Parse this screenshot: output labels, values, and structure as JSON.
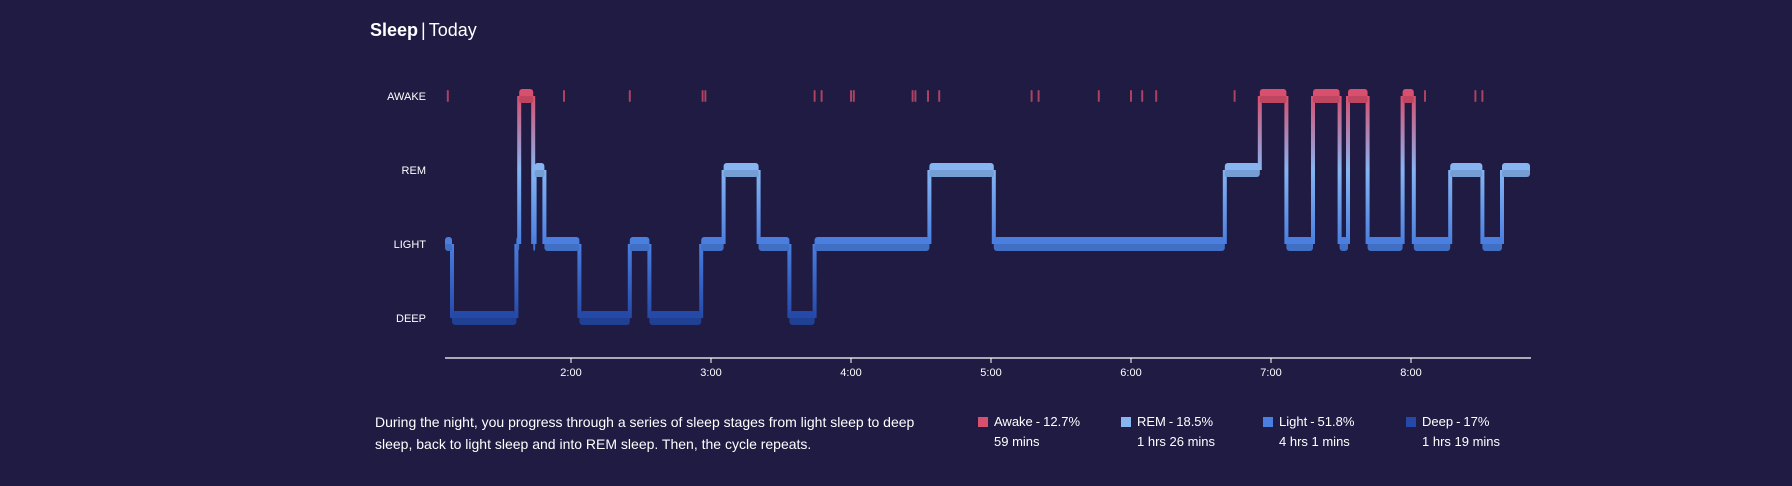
{
  "header": {
    "title": "Sleep",
    "subtitle": "Today"
  },
  "description": "During the night, you progress through a series of sleep stages from light sleep to deep sleep, back to light sleep and into REM sleep. Then, the cycle repeats.",
  "legend": [
    {
      "label": "Awake",
      "percent": "12.7%",
      "duration": "59 mins",
      "color": "#d9506f"
    },
    {
      "label": "REM",
      "percent": "18.5%",
      "duration": "1 hrs 26 mins",
      "color": "#86b5f2"
    },
    {
      "label": "Light",
      "percent": "51.8%",
      "duration": "4 hrs 1 mins",
      "color": "#4a7fe0"
    },
    {
      "label": "Deep",
      "percent": "17%",
      "duration": "1 hrs 19 mins",
      "color": "#2549a8"
    }
  ],
  "chart_data": {
    "type": "area",
    "y_categories": [
      "AWAKE",
      "REM",
      "LIGHT",
      "DEEP"
    ],
    "x_ticks": [
      "2:00",
      "3:00",
      "4:00",
      "5:00",
      "6:00",
      "7:00",
      "8:00"
    ],
    "x_tick_hours": [
      2,
      3,
      4,
      5,
      6,
      7,
      8
    ],
    "xlim_hours": [
      1.1,
      8.85
    ],
    "segments": [
      {
        "stage": "LIGHT",
        "start": 1.1,
        "end": 1.15
      },
      {
        "stage": "DEEP",
        "start": 1.15,
        "end": 1.61
      },
      {
        "stage": "LIGHT",
        "start": 1.61,
        "end": 1.63
      },
      {
        "stage": "AWAKE",
        "start": 1.63,
        "end": 1.73
      },
      {
        "stage": "LIGHT",
        "start": 1.73,
        "end": 1.74
      },
      {
        "stage": "REM",
        "start": 1.74,
        "end": 1.81
      },
      {
        "stage": "LIGHT",
        "start": 1.81,
        "end": 2.06
      },
      {
        "stage": "DEEP",
        "start": 2.06,
        "end": 2.42
      },
      {
        "stage": "LIGHT",
        "start": 2.42,
        "end": 2.56
      },
      {
        "stage": "DEEP",
        "start": 2.56,
        "end": 2.93
      },
      {
        "stage": "LIGHT",
        "start": 2.93,
        "end": 3.09
      },
      {
        "stage": "REM",
        "start": 3.09,
        "end": 3.34
      },
      {
        "stage": "LIGHT",
        "start": 3.34,
        "end": 3.56
      },
      {
        "stage": "DEEP",
        "start": 3.56,
        "end": 3.74
      },
      {
        "stage": "LIGHT",
        "start": 3.74,
        "end": 4.56
      },
      {
        "stage": "REM",
        "start": 4.56,
        "end": 5.02
      },
      {
        "stage": "LIGHT",
        "start": 5.02,
        "end": 6.67
      },
      {
        "stage": "REM",
        "start": 6.67,
        "end": 6.92
      },
      {
        "stage": "AWAKE",
        "start": 6.92,
        "end": 7.11
      },
      {
        "stage": "LIGHT",
        "start": 7.11,
        "end": 7.3
      },
      {
        "stage": "AWAKE",
        "start": 7.3,
        "end": 7.49
      },
      {
        "stage": "LIGHT",
        "start": 7.49,
        "end": 7.55
      },
      {
        "stage": "AWAKE",
        "start": 7.55,
        "end": 7.69
      },
      {
        "stage": "LIGHT",
        "start": 7.69,
        "end": 7.94
      },
      {
        "stage": "AWAKE",
        "start": 7.94,
        "end": 8.02
      },
      {
        "stage": "LIGHT",
        "start": 8.02,
        "end": 8.28
      },
      {
        "stage": "REM",
        "start": 8.28,
        "end": 8.51
      },
      {
        "stage": "LIGHT",
        "start": 8.51,
        "end": 8.65
      },
      {
        "stage": "REM",
        "start": 8.65,
        "end": 8.85
      }
    ],
    "brief_awakenings": [
      1.12,
      1.95,
      2.42,
      2.94,
      2.96,
      3.74,
      3.79,
      4.0,
      4.02,
      4.44,
      4.46,
      4.55,
      4.63,
      5.29,
      5.34,
      5.77,
      6.0,
      6.08,
      6.18,
      6.74,
      8.1,
      8.46,
      8.51
    ],
    "grid": false,
    "legend_position": "bottom"
  }
}
